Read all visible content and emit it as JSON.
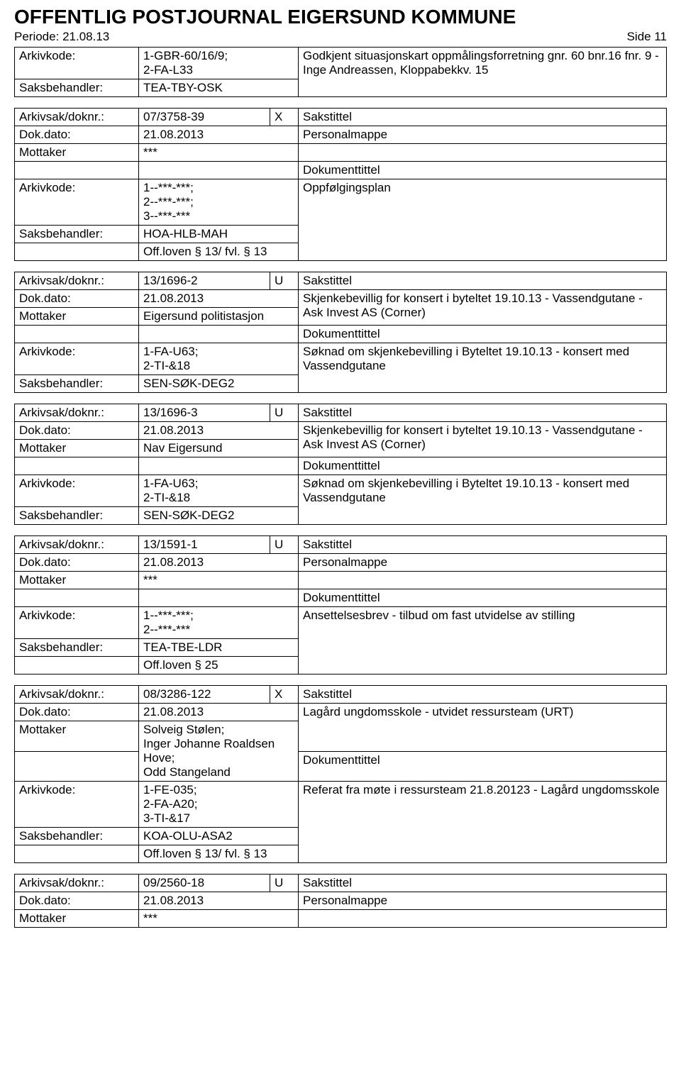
{
  "header": {
    "title": "OFFENTLIG POSTJOURNAL EIGERSUND KOMMUNE",
    "period_label": "Periode:",
    "period_value": "21.08.13",
    "page": "Side 11"
  },
  "blocks": [
    {
      "rows": [
        [
          "Arkivkode:",
          "1-GBR-60/16/9;\n2-FA-L33",
          null,
          "Godkjent situasjonskart oppmålingsforretning gnr. 60 bnr.16 fnr. 9 - Inge Andreassen, Kloppabekkv. 15"
        ],
        [
          "Saksbehandler:",
          "TEA-TBY-OSK",
          null,
          "__MERGE_UP__"
        ]
      ]
    },
    {
      "rows": [
        [
          "Arkivsak/doknr.:",
          "07/3758-39",
          "X",
          "Sakstittel"
        ],
        [
          "Dok.dato:",
          "21.08.2013",
          null,
          "Personalmappe"
        ],
        [
          "Mottaker",
          "***",
          null,
          ""
        ],
        [
          "",
          "",
          null,
          "Dokumenttittel"
        ],
        [
          "Arkivkode:",
          "1--***-***;\n2--***-***;\n3--***-***",
          null,
          "Oppfølgingsplan"
        ],
        [
          "Saksbehandler:",
          "HOA-HLB-MAH",
          null,
          "__MERGE_UP__"
        ],
        [
          "",
          "Off.loven § 13/ fvl. § 13",
          null,
          "__MERGE_UP__"
        ]
      ]
    },
    {
      "rows": [
        [
          "Arkivsak/doknr.:",
          "13/1696-2",
          "U",
          "Sakstittel"
        ],
        [
          "Dok.dato:",
          "21.08.2013",
          null,
          "Skjenkebevillig for konsert i byteltet 19.10.13 - Vassendgutane - Ask Invest AS (Corner)"
        ],
        [
          "Mottaker",
          "Eigersund politistasjon",
          null,
          "__MERGE_UP__"
        ],
        [
          "",
          "",
          null,
          "Dokumenttittel"
        ],
        [
          "Arkivkode:",
          "1-FA-U63;\n2-TI-&18",
          null,
          "Søknad om skjenkebevilling i Byteltet 19.10.13 - konsert med Vassendgutane"
        ],
        [
          "Saksbehandler:",
          "SEN-SØK-DEG2",
          null,
          "__MERGE_UP__"
        ]
      ]
    },
    {
      "rows": [
        [
          "Arkivsak/doknr.:",
          "13/1696-3",
          "U",
          "Sakstittel"
        ],
        [
          "Dok.dato:",
          "21.08.2013",
          null,
          "Skjenkebevillig for konsert i byteltet 19.10.13 - Vassendgutane - Ask Invest AS (Corner)"
        ],
        [
          "Mottaker",
          "Nav Eigersund",
          null,
          "__MERGE_UP__"
        ],
        [
          "",
          "",
          null,
          "Dokumenttittel"
        ],
        [
          "Arkivkode:",
          "1-FA-U63;\n2-TI-&18",
          null,
          "Søknad om skjenkebevilling i Byteltet 19.10.13 - konsert med Vassendgutane"
        ],
        [
          "Saksbehandler:",
          "SEN-SØK-DEG2",
          null,
          "__MERGE_UP__"
        ]
      ]
    },
    {
      "rows": [
        [
          "Arkivsak/doknr.:",
          "13/1591-1",
          "U",
          "Sakstittel"
        ],
        [
          "Dok.dato:",
          "21.08.2013",
          null,
          "Personalmappe"
        ],
        [
          "Mottaker",
          "***",
          null,
          ""
        ],
        [
          "",
          "",
          null,
          "Dokumenttittel"
        ],
        [
          "Arkivkode:",
          "1--***-***;\n2--***-***",
          null,
          "Ansettelsesbrev - tilbud om fast utvidelse av stilling"
        ],
        [
          "Saksbehandler:",
          "TEA-TBE-LDR",
          null,
          "__MERGE_UP__"
        ],
        [
          "",
          "Off.loven § 25",
          null,
          "__MERGE_UP__"
        ]
      ]
    },
    {
      "rows": [
        [
          "Arkivsak/doknr.:",
          "08/3286-122",
          "X",
          "Sakstittel"
        ],
        [
          "Dok.dato:",
          "21.08.2013",
          null,
          "Lagård ungdomsskole - utvidet ressursteam  (URT)"
        ],
        [
          "Mottaker",
          "Solveig Stølen;\nInger Johanne Roaldsen Hove;\nOdd Stangeland",
          null,
          "__MERGE_UP__"
        ],
        [
          "",
          "__MERGE_UP__",
          null,
          "Dokumenttittel"
        ],
        [
          "Arkivkode:",
          "1-FE-035;\n2-FA-A20;\n3-TI-&17",
          null,
          "Referat fra møte i ressursteam 21.8.20123 - Lagård ungdomsskole"
        ],
        [
          "Saksbehandler:",
          "KOA-OLU-ASA2",
          null,
          "__MERGE_UP__"
        ],
        [
          "",
          "Off.loven § 13/ fvl. § 13",
          null,
          "__MERGE_UP__"
        ]
      ]
    },
    {
      "rows": [
        [
          "Arkivsak/doknr.:",
          "09/2560-18",
          "U",
          "Sakstittel"
        ],
        [
          "Dok.dato:",
          "21.08.2013",
          null,
          "Personalmappe"
        ],
        [
          "Mottaker",
          "***",
          null,
          ""
        ]
      ]
    }
  ]
}
